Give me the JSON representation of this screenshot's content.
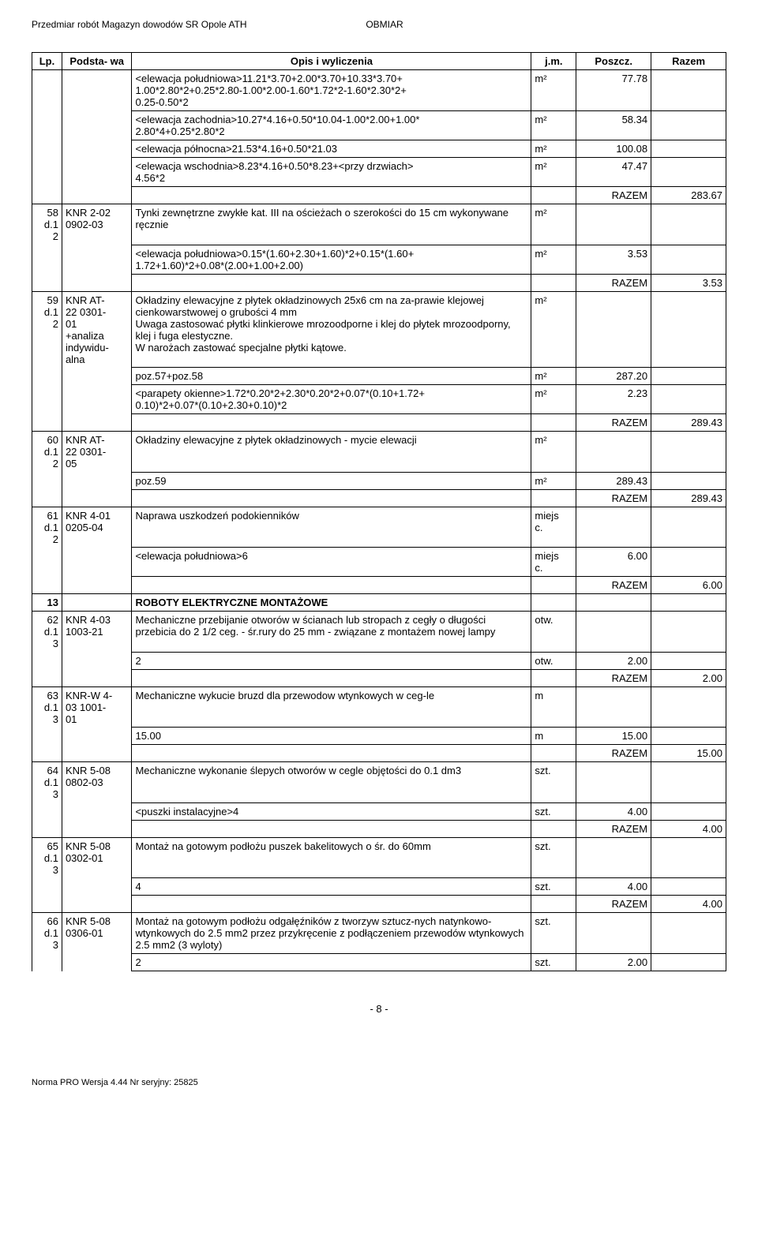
{
  "header": {
    "left": "Przedmiar robót Magazyn dowodów SR Opole ATH",
    "right": "OBMIAR"
  },
  "columns": [
    "Lp.",
    "Podsta-\nwa",
    "Opis i wyliczenia",
    "j.m.",
    "Poszcz.",
    "Razem"
  ],
  "rows": [
    {
      "type": "calc",
      "lp": "",
      "pod": "",
      "opis": "<elewacja południowa>11.21*3.70+2.00*3.70+10.33*3.70+\n1.00*2.80*2+0.25*2.80-1.00*2.00-1.60*1.72*2-1.60*2.30*2+\n0.25-0.50*2",
      "jm": "m²",
      "poszcz": "77.78",
      "razem": ""
    },
    {
      "type": "calc",
      "lp": "",
      "pod": "",
      "opis": "<elewacja zachodnia>10.27*4.16+0.50*10.04-1.00*2.00+1.00*\n2.80*4+0.25*2.80*2",
      "jm": "m²",
      "poszcz": "58.34",
      "razem": ""
    },
    {
      "type": "calc",
      "lp": "",
      "pod": "",
      "opis": "<elewacja północna>21.53*4.16+0.50*21.03",
      "jm": "m²",
      "poszcz": "100.08",
      "razem": ""
    },
    {
      "type": "calc",
      "lp": "",
      "pod": "",
      "opis": "<elewacja wschodnia>8.23*4.16+0.50*8.23+<przy drzwiach>\n4.56*2",
      "jm": "m²",
      "poszcz": "47.47",
      "razem": ""
    },
    {
      "type": "razem",
      "razem": "RAZEM",
      "val": "283.67"
    },
    {
      "type": "item",
      "lp": "58\nd.1\n2",
      "pod": "KNR 2-02\n0902-03",
      "opis": "Tynki zewnętrzne zwykłe kat. III na ościeżach o szerokości do 15 cm wykonywane ręcznie",
      "jm": "m²",
      "poszcz": "",
      "razem": ""
    },
    {
      "type": "calc",
      "lp": "",
      "pod": "",
      "opis": "<elewacja południowa>0.15*(1.60+2.30+1.60)*2+0.15*(1.60+\n1.72+1.60)*2+0.08*(2.00+1.00+2.00)",
      "jm": "m²",
      "poszcz": "3.53",
      "razem": ""
    },
    {
      "type": "razem",
      "razem": "RAZEM",
      "val": "3.53"
    },
    {
      "type": "item",
      "lp": "59\nd.1\n2",
      "pod": "KNR AT-\n22 0301-\n01\n+analiza\nindywidu-\nalna",
      "opis": "Okładziny elewacyjne z płytek okładzinowych 25x6 cm na za-prawie klejowej cienkowarstwowej o grubości 4 mm\nUwaga zastosować płytki klinkierowe mrozoodporne i klej do płytek mrozoodporny, klej i fuga elestyczne.\nW narożach zastować specjalne płytki kątowe.",
      "jm": "m²",
      "poszcz": "",
      "razem": ""
    },
    {
      "type": "calc",
      "lp": "",
      "pod": "",
      "opis": "poz.57+poz.58",
      "jm": "m²",
      "poszcz": "287.20",
      "razem": ""
    },
    {
      "type": "calc",
      "lp": "",
      "pod": "",
      "opis": "<parapety okienne>1.72*0.20*2+2.30*0.20*2+0.07*(0.10+1.72+\n0.10)*2+0.07*(0.10+2.30+0.10)*2",
      "jm": "m²",
      "poszcz": "2.23",
      "razem": ""
    },
    {
      "type": "razem",
      "razem": "RAZEM",
      "val": "289.43"
    },
    {
      "type": "item",
      "lp": "60\nd.1\n2",
      "pod": "KNR AT-\n22 0301-\n05",
      "opis": "Okładziny elewacyjne z płytek okładzinowych - mycie elewacji",
      "jm": "m²",
      "poszcz": "",
      "razem": ""
    },
    {
      "type": "calc",
      "lp": "",
      "pod": "",
      "opis": "poz.59",
      "jm": "m²",
      "poszcz": "289.43",
      "razem": ""
    },
    {
      "type": "razem",
      "razem": "RAZEM",
      "val": "289.43"
    },
    {
      "type": "item",
      "lp": "61\nd.1\n2",
      "pod": "KNR 4-01\n0205-04",
      "opis": "Naprawa uszkodzeń podokienników",
      "jm": "miejs\nc.",
      "poszcz": "",
      "razem": ""
    },
    {
      "type": "calc",
      "lp": "",
      "pod": "",
      "opis": "<elewacja południowa>6",
      "jm": "miejs\nc.",
      "poszcz": "6.00",
      "razem": ""
    },
    {
      "type": "razem",
      "razem": "RAZEM",
      "val": "6.00"
    },
    {
      "type": "section",
      "lp": "13",
      "opis": "ROBOTY ELEKTRYCZNE MONTAŻOWE"
    },
    {
      "type": "item",
      "lp": "62\nd.1\n3",
      "pod": "KNR 4-03\n1003-21",
      "opis": "Mechaniczne przebijanie otworów w ścianach lub stropach z cegły o długości przebicia do 2 1/2 ceg. - śr.rury do 25 mm - związane z montażem nowej lampy",
      "jm": "otw.",
      "poszcz": "",
      "razem": ""
    },
    {
      "type": "calc",
      "lp": "",
      "pod": "",
      "opis": "2",
      "jm": "otw.",
      "poszcz": "2.00",
      "razem": ""
    },
    {
      "type": "razem",
      "razem": "RAZEM",
      "val": "2.00"
    },
    {
      "type": "item",
      "lp": "63\nd.1\n3",
      "pod": "KNR-W 4-\n03 1001-\n01",
      "opis": "Mechaniczne wykucie bruzd dla przewodow wtynkowych w ceg-le",
      "jm": "m",
      "poszcz": "",
      "razem": ""
    },
    {
      "type": "calc",
      "lp": "",
      "pod": "",
      "opis": "15.00",
      "jm": "m",
      "poszcz": "15.00",
      "razem": ""
    },
    {
      "type": "razem",
      "razem": "RAZEM",
      "val": "15.00"
    },
    {
      "type": "item",
      "lp": "64\nd.1\n3",
      "pod": "KNR 5-08\n0802-03",
      "opis": "Mechaniczne wykonanie ślepych otworów w cegle objętości do 0.1 dm3",
      "jm": "szt.",
      "poszcz": "",
      "razem": ""
    },
    {
      "type": "calc",
      "lp": "",
      "pod": "",
      "opis": "<puszki instalacyjne>4",
      "jm": "szt.",
      "poszcz": "4.00",
      "razem": ""
    },
    {
      "type": "razem",
      "razem": "RAZEM",
      "val": "4.00"
    },
    {
      "type": "item",
      "lp": "65\nd.1\n3",
      "pod": "KNR 5-08\n0302-01",
      "opis": "Montaż na gotowym podłożu puszek bakelitowych o śr. do 60mm",
      "jm": "szt.",
      "poszcz": "",
      "razem": ""
    },
    {
      "type": "calc",
      "lp": "",
      "pod": "",
      "opis": "4",
      "jm": "szt.",
      "poszcz": "4.00",
      "razem": ""
    },
    {
      "type": "razem",
      "razem": "RAZEM",
      "val": "4.00"
    },
    {
      "type": "item",
      "lp": "66\nd.1\n3",
      "pod": "KNR 5-08\n0306-01",
      "opis": "Montaż na gotowym podłożu odgałęźników z tworzyw sztucz-nych natynkowo-wtynkowych do 2.5 mm2 przez przykręcenie z podłączeniem przewodów wtynkowych 2.5 mm2 (3 wyloty)",
      "jm": "szt.",
      "poszcz": "",
      "razem": ""
    },
    {
      "type": "calc",
      "lp": "",
      "pod": "",
      "opis": "2",
      "jm": "szt.",
      "poszcz": "2.00",
      "razem": ""
    }
  ],
  "pageNumber": "- 8 -",
  "footerNote": "Norma PRO Wersja 4.44 Nr seryjny: 25825"
}
